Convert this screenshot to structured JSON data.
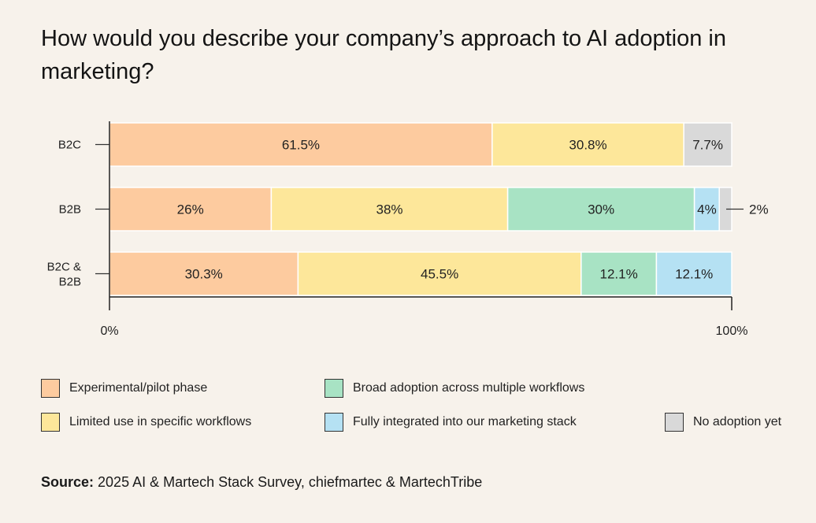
{
  "title": "How would you describe your company’s approach to AI adoption in marketing?",
  "source": {
    "label": "Source:",
    "text": " 2025 AI & Martech Stack Survey, chiefmartec & MartechTribe"
  },
  "colors": {
    "experimental": "#fdcb9f",
    "limited": "#fde79a",
    "broad": "#a8e3c4",
    "integrated": "#b5e1f3",
    "none": "#d9d9d9"
  },
  "chart_data": {
    "type": "bar",
    "orientation": "horizontal",
    "stacked": true,
    "categories": [
      "B2C",
      "B2B",
      "B2C & B2B"
    ],
    "xlim": [
      0,
      100
    ],
    "x_tick_labels": [
      "0%",
      "100%"
    ],
    "series": [
      {
        "name": "Experimental/pilot phase",
        "key": "experimental",
        "values": [
          61.5,
          26,
          30.3
        ],
        "labels": [
          "61.5%",
          "26%",
          "30.3%"
        ]
      },
      {
        "name": "Limited use in specific workflows",
        "key": "limited",
        "values": [
          30.8,
          38,
          45.5
        ],
        "labels": [
          "30.8%",
          "38%",
          "45.5%"
        ]
      },
      {
        "name": "Broad adoption across multiple workflows",
        "key": "broad",
        "values": [
          0,
          30,
          12.1
        ],
        "labels": [
          "",
          "30%",
          "12.1%"
        ]
      },
      {
        "name": "Fully integrated into our marketing stack",
        "key": "integrated",
        "values": [
          0,
          4,
          12.1
        ],
        "labels": [
          "",
          "4%",
          "12.1%"
        ]
      },
      {
        "name": "No adoption yet",
        "key": "none",
        "values": [
          7.7,
          2,
          0
        ],
        "labels": [
          "7.7%",
          "",
          ""
        ]
      }
    ],
    "annotations": [
      {
        "category": "B2B",
        "series": "No adoption yet",
        "text": "2%"
      }
    ],
    "legend_position": "bottom",
    "grid": false
  }
}
